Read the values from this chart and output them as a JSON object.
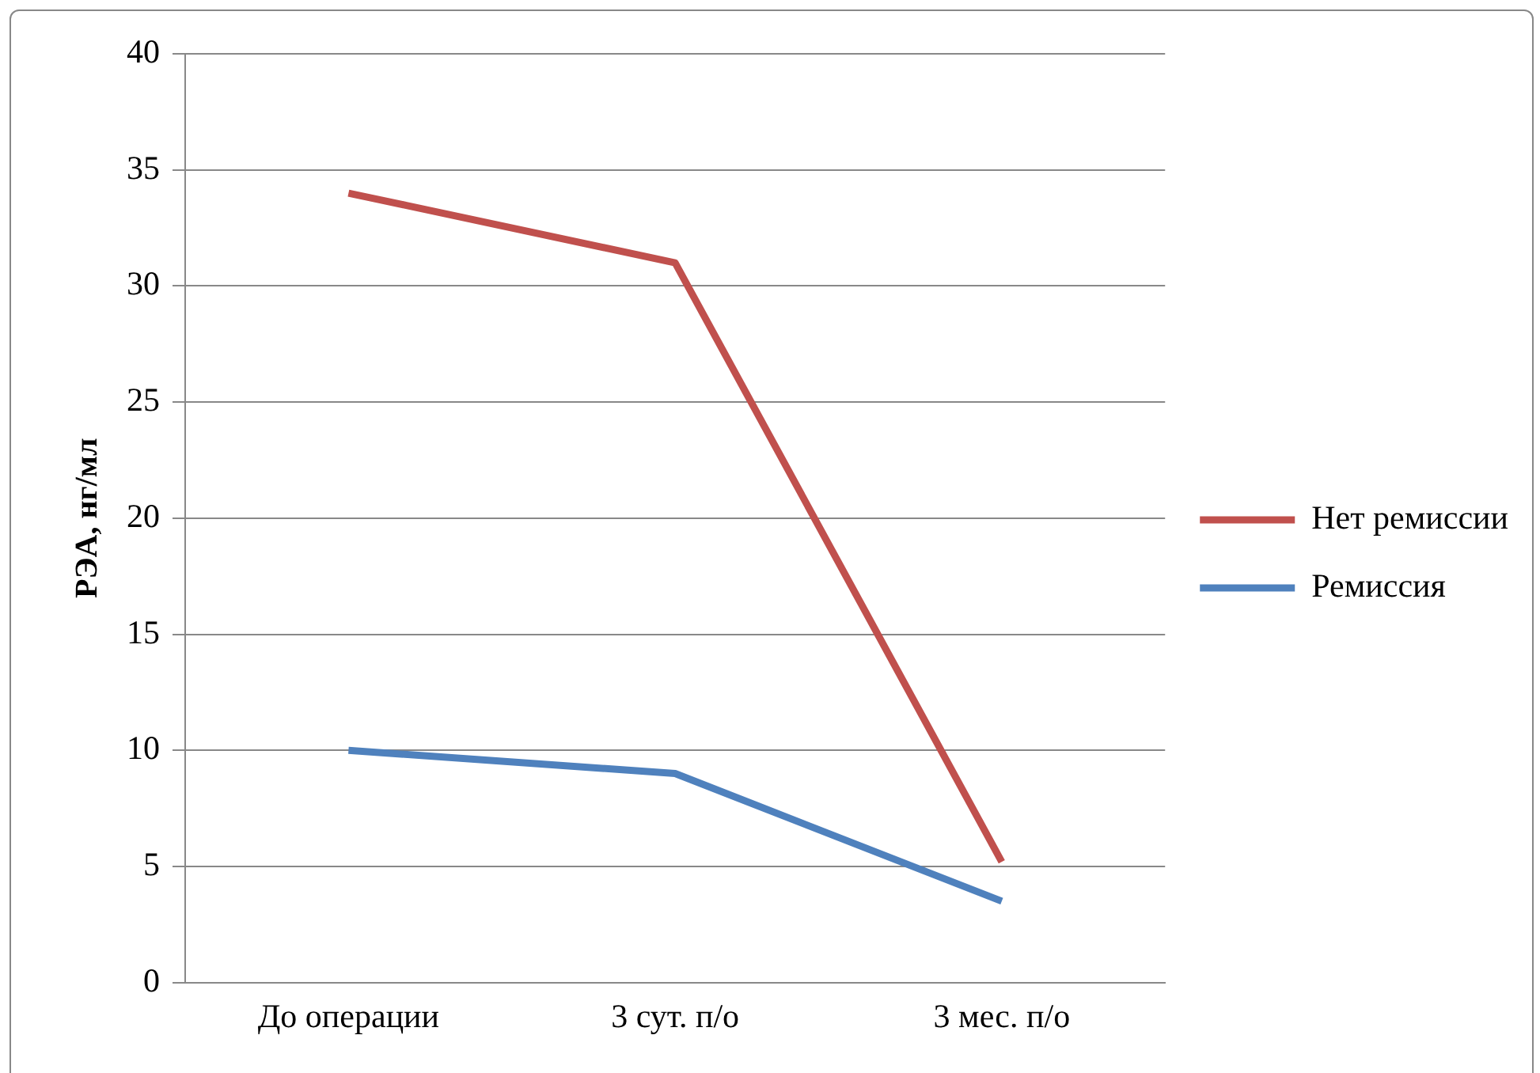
{
  "chart_data": {
    "type": "line",
    "ylabel": "РЭА, нг/мл",
    "categories": [
      "До операции",
      "3 сут. п/о",
      "3 мес. п/о"
    ],
    "series": [
      {
        "name": "Нет ремиссии",
        "color": "#c0504d",
        "values": [
          34,
          31,
          5.2
        ]
      },
      {
        "name": "Ремиссия",
        "color": "#4f81bd",
        "values": [
          10,
          9,
          3.5
        ]
      }
    ],
    "ylim": [
      0,
      40
    ],
    "yticks": [
      0,
      5,
      10,
      15,
      20,
      25,
      30,
      35,
      40
    ],
    "grid": "y",
    "legend": "right",
    "marker": "none"
  }
}
